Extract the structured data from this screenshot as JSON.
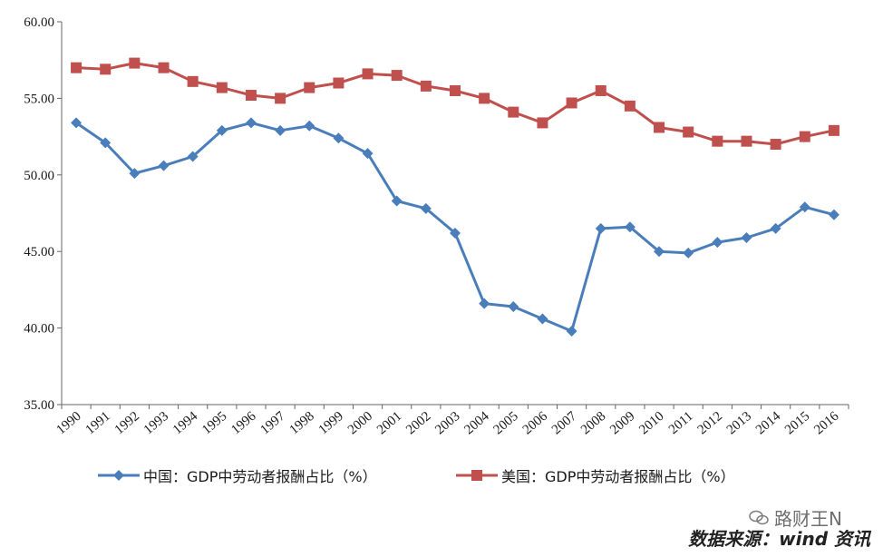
{
  "chart_data": {
    "type": "line",
    "title": "",
    "xlabel": "",
    "ylabel": "",
    "ylim": [
      35,
      60
    ],
    "yticks": [
      "35.00",
      "40.00",
      "45.00",
      "50.00",
      "55.00",
      "60.00"
    ],
    "categories": [
      "1990",
      "1991",
      "1992",
      "1993",
      "1994",
      "1995",
      "1996",
      "1997",
      "1998",
      "1999",
      "2000",
      "2001",
      "2002",
      "2003",
      "2004",
      "2005",
      "2006",
      "2007",
      "2008",
      "2009",
      "2010",
      "2011",
      "2012",
      "2013",
      "2014",
      "2015",
      "2016"
    ],
    "grid": false,
    "legend_position": "bottom",
    "series": [
      {
        "name": "中国：GDP中劳动者报酬占比（%）",
        "color": "#4a7ebb",
        "marker": "diamond",
        "values": [
          53.4,
          52.1,
          50.1,
          50.6,
          51.2,
          52.9,
          53.4,
          52.9,
          53.2,
          52.4,
          51.4,
          48.3,
          47.8,
          46.2,
          41.6,
          41.4,
          40.6,
          39.8,
          46.5,
          46.6,
          45.0,
          44.9,
          45.6,
          45.9,
          46.5,
          47.9,
          47.4
        ]
      },
      {
        "name": "美国：GDP中劳动者报酬占比（%）",
        "color": "#c0504d",
        "marker": "square",
        "values": [
          57.0,
          56.9,
          57.3,
          57.0,
          56.1,
          55.7,
          55.2,
          55.0,
          55.7,
          56.0,
          56.6,
          56.5,
          55.8,
          55.5,
          55.0,
          54.1,
          53.4,
          54.7,
          55.5,
          54.5,
          53.1,
          52.8,
          52.2,
          52.2,
          52.0,
          52.5,
          52.9
        ]
      }
    ]
  },
  "source_text": "数据来源：wind 资讯",
  "watermark_text": "路财王N"
}
